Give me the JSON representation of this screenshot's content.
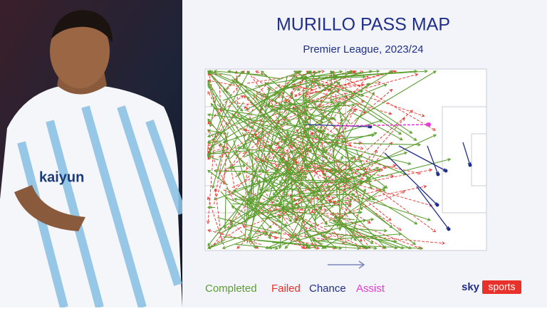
{
  "header": {
    "title": "MURILLO PASS MAP",
    "subtitle": "Premier League, 2023/24"
  },
  "legend": {
    "items": [
      {
        "label": "Completed",
        "color": "#5b9e2e"
      },
      {
        "label": "Failed",
        "color": "#e8312a"
      },
      {
        "label": "Chance",
        "color": "#1f2f8a"
      },
      {
        "label": "Assist",
        "color": "#e63ad6"
      }
    ]
  },
  "logo": {
    "brand": "sky",
    "product": "sports"
  }
}
